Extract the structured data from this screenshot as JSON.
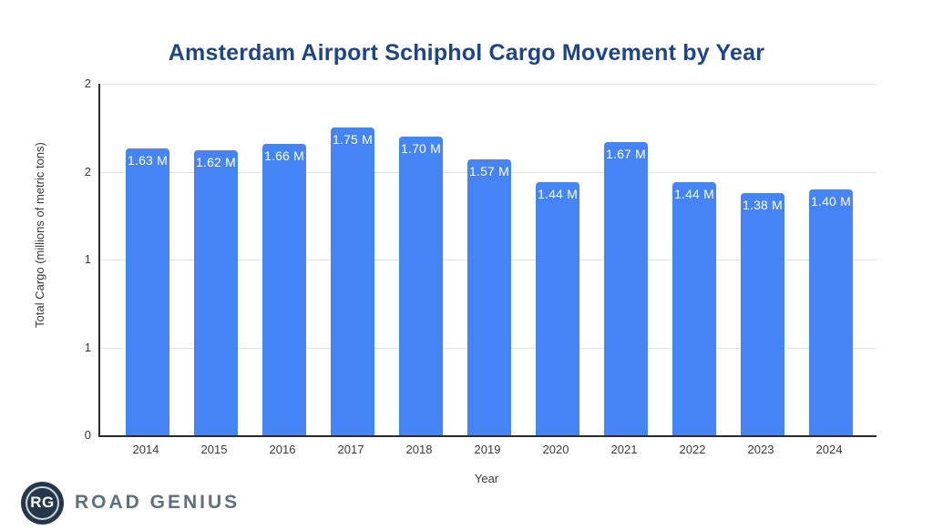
{
  "chart_data": {
    "type": "bar",
    "title": "Amsterdam Airport Schiphol Cargo Movement by Year",
    "xlabel": "Year",
    "ylabel": "Total Cargo (millions of metric tons)",
    "categories": [
      "2014",
      "2015",
      "2016",
      "2017",
      "2018",
      "2019",
      "2020",
      "2021",
      "2022",
      "2023",
      "2024"
    ],
    "values": [
      1.63,
      1.62,
      1.66,
      1.75,
      1.7,
      1.57,
      1.44,
      1.67,
      1.44,
      1.38,
      1.4
    ],
    "bar_labels": [
      "1.63 M",
      "1.62 M",
      "1.66 M",
      "1.75 M",
      "1.70 M",
      "1.57 M",
      "1.44 M",
      "1.67 M",
      "1.44 M",
      "1.38 M",
      "1.40 M"
    ],
    "ylim": [
      0,
      2
    ],
    "yticks": [
      {
        "value": 0,
        "label": "0"
      },
      {
        "value": 0.5,
        "label": "1"
      },
      {
        "value": 1,
        "label": "1"
      },
      {
        "value": 1.5,
        "label": "2"
      },
      {
        "value": 2,
        "label": "2"
      }
    ],
    "grid": true,
    "legend": "none",
    "colors": {
      "bar": "#4584f4",
      "bar_label_text": "#ffffff",
      "title": "#1e4586",
      "axis_text": "#3a3a3a",
      "gridline": "#e3e3e3",
      "axis_line": "#2b2b2b"
    }
  },
  "branding": {
    "logo_initials": "RG",
    "logo_text": "ROAD GENIUS",
    "logo_circle_color": "#25384a",
    "logo_text_color": "#5f707d"
  }
}
